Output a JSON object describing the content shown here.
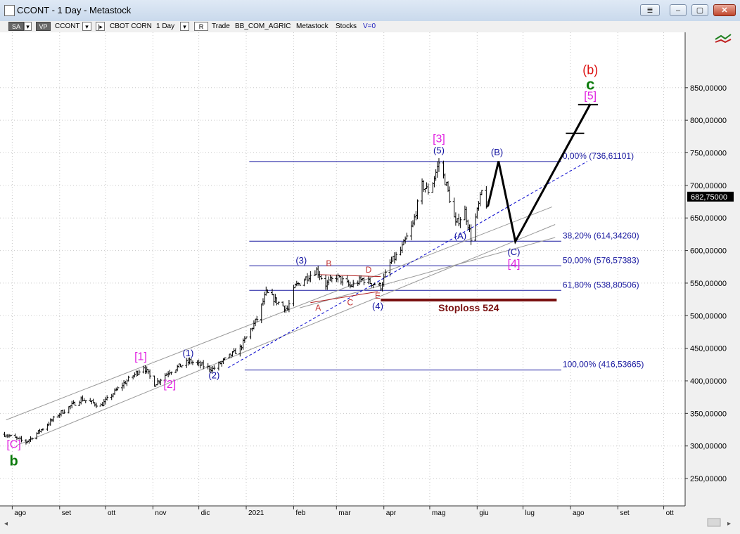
{
  "window": {
    "title": "CCONT - 1 Day - Metastock",
    "btn_icon": "window-icon",
    "btn_min": "–",
    "btn_restore": "▢",
    "btn_close": "✕"
  },
  "toolbar": {
    "sa": "SA",
    "vp": "VP",
    "symbol": "CCONT",
    "name": "CBOT CORN",
    "period": "1 Day",
    "r": "R",
    "trade": "Trade",
    "source": "BB_COM_AGRIC",
    "app": "Metastock",
    "type": "Stocks",
    "volume": "V=0"
  },
  "chart_data": {
    "type": "candlestick",
    "title": "",
    "xlabel": "",
    "ylabel": "",
    "ylim": [
      208,
      935
    ],
    "y_ticks": [
      "850,00000",
      "800,00000",
      "750,00000",
      "700,00000",
      "650,00000",
      "600,00000",
      "550,00000",
      "500,00000",
      "450,00000",
      "400,00000",
      "350,00000",
      "300,00000",
      "250,00000"
    ],
    "y_tick_values": [
      850,
      800,
      750,
      700,
      650,
      600,
      550,
      500,
      450,
      400,
      350,
      300,
      250
    ],
    "x_ticks": [
      "ago",
      "set",
      "ott",
      "nov",
      "dic",
      "2021",
      "feb",
      "mar",
      "apr",
      "mag",
      "giu",
      "lug",
      "ago",
      "set",
      "ott"
    ],
    "x_tick_dates": [
      "2020-08-01",
      "2020-09-01",
      "2020-10-01",
      "2020-11-01",
      "2020-12-01",
      "2021-01-01",
      "2021-02-01",
      "2021-03-01",
      "2021-04-01",
      "2021-05-01",
      "2021-06-01",
      "2021-07-01",
      "2021-08-01",
      "2021-09-01",
      "2021-10-01"
    ],
    "last_price": 682.75,
    "last_price_label": "682,75000",
    "price_anchors": [
      [
        "2020-07-27",
        318
      ],
      [
        "2020-08-10",
        306
      ],
      [
        "2020-08-20",
        325
      ],
      [
        "2020-09-01",
        350
      ],
      [
        "2020-09-15",
        372
      ],
      [
        "2020-09-28",
        362
      ],
      [
        "2020-10-10",
        390
      ],
      [
        "2020-10-26",
        422
      ],
      [
        "2020-11-02",
        395
      ],
      [
        "2020-11-12",
        415
      ],
      [
        "2020-11-25",
        430
      ],
      [
        "2020-12-10",
        418
      ],
      [
        "2020-12-28",
        450
      ],
      [
        "2021-01-08",
        495
      ],
      [
        "2021-01-14",
        535
      ],
      [
        "2021-01-22",
        520
      ],
      [
        "2021-01-28",
        510
      ],
      [
        "2021-02-02",
        545
      ],
      [
        "2021-02-10",
        560
      ],
      [
        "2021-02-16",
        570
      ],
      [
        "2021-02-22",
        548
      ],
      [
        "2021-03-01",
        560
      ],
      [
        "2021-03-10",
        545
      ],
      [
        "2021-03-18",
        556
      ],
      [
        "2021-03-24",
        550
      ],
      [
        "2021-03-30",
        545
      ],
      [
        "2021-04-05",
        580
      ],
      [
        "2021-04-12",
        600
      ],
      [
        "2021-04-20",
        640
      ],
      [
        "2021-04-26",
        700
      ],
      [
        "2021-05-01",
        690
      ],
      [
        "2021-05-07",
        735
      ],
      [
        "2021-05-12",
        700
      ],
      [
        "2021-05-18",
        640
      ],
      [
        "2021-05-24",
        660
      ],
      [
        "2021-05-28",
        620
      ],
      [
        "2021-06-01",
        660
      ],
      [
        "2021-06-04",
        690
      ],
      [
        "2021-06-08",
        665
      ]
    ],
    "fib_levels": [
      {
        "label": "0,00% (736,61101)",
        "value": 736.61101
      },
      {
        "label": "38,20% (614,34260)",
        "value": 614.3426
      },
      {
        "label": "50,00% (576,57383)",
        "value": 576.57383
      },
      {
        "label": "61,80% (538,80506)",
        "value": 538.80506
      },
      {
        "label": "100,00% (416,53665)",
        "value": 416.53665
      }
    ],
    "fib_x_start": "2021-01-03",
    "fib_x_start_short": "2020-12-31",
    "fib_x_end": "2021-07-26",
    "channel_lines": [
      {
        "from": [
          "2020-07-28",
          340
        ],
        "to": [
          "2021-07-20",
          667
        ],
        "color": "#999999"
      },
      {
        "from": [
          "2020-08-04",
          301
        ],
        "to": [
          "2021-07-22",
          640
        ],
        "color": "#999999"
      },
      {
        "from": [
          "2021-02-05",
          512
        ],
        "to": [
          "2021-07-22",
          620
        ],
        "color": "#999999"
      },
      {
        "from": [
          "2020-12-20",
          420
        ],
        "to": [
          "2021-08-12",
          737
        ],
        "color": "#0000cc",
        "dashed": true
      }
    ],
    "triangle_lines": [
      {
        "from": [
          "2021-02-12",
          520
        ],
        "to": [
          "2021-03-28",
          537
        ]
      },
      {
        "from": [
          "2021-02-18",
          563
        ],
        "to": [
          "2021-03-30",
          560
        ]
      }
    ],
    "projection_path": [
      [
        "2021-06-08",
        668
      ],
      [
        "2021-06-15",
        737
      ],
      [
        "2021-06-26",
        614
      ],
      [
        "2021-08-14",
        825
      ]
    ],
    "projection_ticks": [
      {
        "from": [
          "2021-07-29",
          780
        ],
        "to": [
          "2021-08-10",
          780
        ]
      },
      {
        "from": [
          "2021-08-06",
          824
        ],
        "to": [
          "2021-08-19",
          824
        ]
      }
    ],
    "stoploss": {
      "label": "Stoploss 524",
      "value": 524,
      "from": "2021-03-30",
      "to": "2021-07-23"
    },
    "wave_labels": [
      {
        "text": "[C]",
        "date": "2020-08-02",
        "price": 297,
        "color": "#e020e0",
        "size": 16
      },
      {
        "text": "b",
        "date": "2020-08-02",
        "price": 270,
        "color": "#0a7a0a",
        "size": 20,
        "bold": true
      },
      {
        "text": "[1]",
        "date": "2020-10-24",
        "price": 432,
        "color": "#e020e0",
        "size": 16
      },
      {
        "text": "[2]",
        "date": "2020-11-12",
        "price": 389,
        "color": "#e020e0",
        "size": 16
      },
      {
        "text": "(1)",
        "date": "2020-11-24",
        "price": 438,
        "color": "#1010a0",
        "size": 13
      },
      {
        "text": "(2)",
        "date": "2020-12-11",
        "price": 404,
        "color": "#1010a0",
        "size": 13
      },
      {
        "text": "(3)",
        "date": "2021-02-06",
        "price": 580,
        "color": "#1010a0",
        "size": 13
      },
      {
        "text": "A",
        "date": "2021-02-17",
        "price": 508,
        "color": "#c03030",
        "size": 12
      },
      {
        "text": "B",
        "date": "2021-02-24",
        "price": 576,
        "color": "#c03030",
        "size": 12
      },
      {
        "text": "C",
        "date": "2021-03-10",
        "price": 516,
        "color": "#c03030",
        "size": 12
      },
      {
        "text": "D",
        "date": "2021-03-22",
        "price": 566,
        "color": "#c03030",
        "size": 12
      },
      {
        "text": "E",
        "date": "2021-03-28",
        "price": 526,
        "color": "#c03030",
        "size": 12
      },
      {
        "text": "(4)",
        "date": "2021-03-28",
        "price": 510,
        "color": "#1010a0",
        "size": 13
      },
      {
        "text": "[3]",
        "date": "2021-05-07",
        "price": 766,
        "color": "#e020e0",
        "size": 16
      },
      {
        "text": "(5)",
        "date": "2021-05-07",
        "price": 749,
        "color": "#1010a0",
        "size": 13
      },
      {
        "text": "(A)",
        "date": "2021-05-21",
        "price": 618,
        "color": "#1010a0",
        "size": 13
      },
      {
        "text": "(B)",
        "date": "2021-06-14",
        "price": 746,
        "color": "#1010a0",
        "size": 13
      },
      {
        "text": "(C)",
        "date": "2021-06-25",
        "price": 593,
        "color": "#1010a0",
        "size": 13
      },
      {
        "text": "[4]",
        "date": "2021-06-25",
        "price": 574,
        "color": "#e020e0",
        "size": 16
      },
      {
        "text": "(b)",
        "date": "2021-08-14",
        "price": 871,
        "color": "#dd1111",
        "size": 18
      },
      {
        "text": "c",
        "date": "2021-08-14",
        "price": 847,
        "color": "#0a7a0a",
        "size": 22,
        "bold": true
      },
      {
        "text": "[5]",
        "date": "2021-08-14",
        "price": 832,
        "color": "#e020e0",
        "size": 16
      }
    ]
  }
}
